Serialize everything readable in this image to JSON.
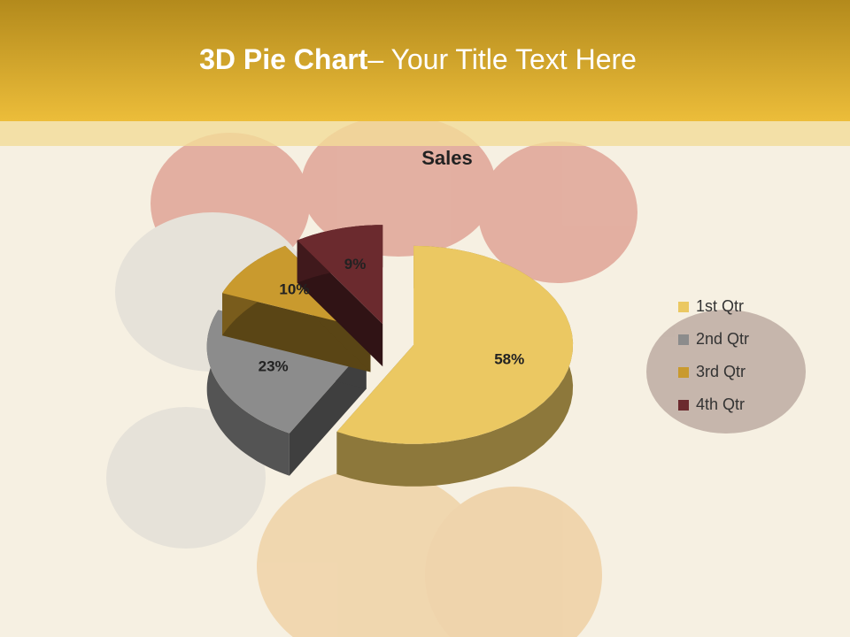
{
  "slide": {
    "title_bold": "3D Pie Chart",
    "title_rest": "– Your Title Text Here"
  },
  "chart_data": {
    "type": "pie",
    "title": "Sales",
    "categories": [
      "1st Qtr",
      "2nd Qtr",
      "3rd Qtr",
      "4th Qtr"
    ],
    "values": [
      58,
      23,
      10,
      9
    ],
    "value_labels": [
      "58%",
      "23%",
      "10%",
      "9%"
    ],
    "colors": [
      "#ebc862",
      "#8c8c8c",
      "#c99a2e",
      "#6b2a2e"
    ],
    "legend": "right"
  }
}
